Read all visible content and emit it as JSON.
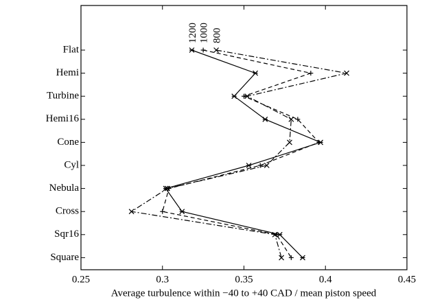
{
  "chart_data": {
    "type": "line",
    "xlabel": "Average turbulence within −40 to +40 CAD / mean piston speed",
    "categories": [
      "Flat",
      "Hemi",
      "Turbine",
      "Hemi16",
      "Cone",
      "Cyl",
      "Nebula",
      "Cross",
      "Sqr16",
      "Square"
    ],
    "series": [
      {
        "name": "1200",
        "color": "#000000",
        "line": "solid",
        "marker": "asterisk",
        "values": [
          0.318,
          0.357,
          0.344,
          0.363,
          0.397,
          0.353,
          0.302,
          0.312,
          0.372,
          0.386
        ]
      },
      {
        "name": "1000",
        "color": "#000000",
        "line": "dashed",
        "marker": "plus",
        "values": [
          0.325,
          0.391,
          0.35,
          0.383,
          0.396,
          0.36,
          0.304,
          0.3,
          0.37,
          0.379
        ]
      },
      {
        "name": "800",
        "color": "#000000",
        "line": "dashdot",
        "marker": "x",
        "values": [
          0.333,
          0.413,
          0.352,
          0.379,
          0.378,
          0.364,
          0.303,
          0.281,
          0.369,
          0.373
        ]
      }
    ],
    "xlim": [
      0.25,
      0.45
    ],
    "xticks": [
      0.25,
      0.3,
      0.35,
      0.4,
      0.45
    ],
    "grid": false
  }
}
